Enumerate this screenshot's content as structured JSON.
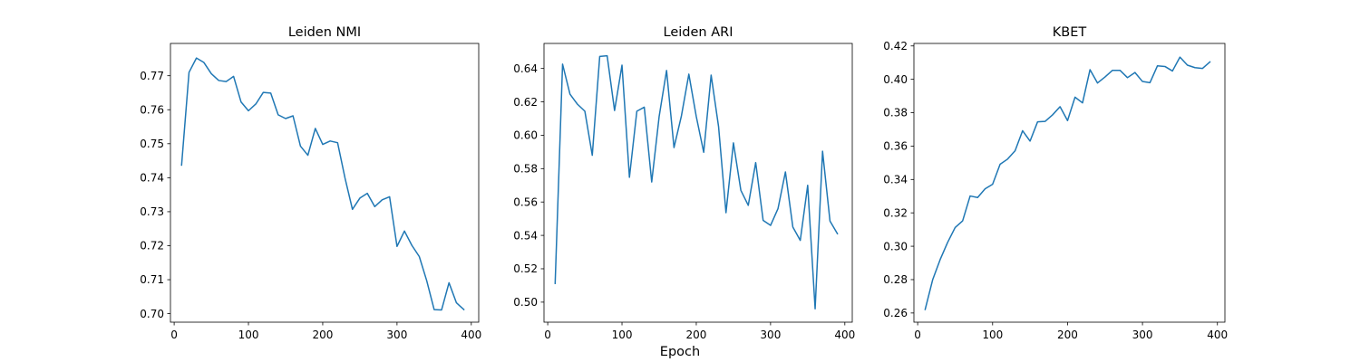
{
  "figure": {
    "xlabel": "Epoch"
  },
  "chart_data": [
    {
      "type": "line",
      "title": "Leiden NMI",
      "xlabel": "",
      "ylabel": "",
      "xlim": [
        -5,
        410
      ],
      "ylim": [
        0.6975,
        0.7795
      ],
      "xticks": [
        0,
        100,
        200,
        300,
        400
      ],
      "yticks": [
        0.7,
        0.71,
        0.72,
        0.73,
        0.74,
        0.75,
        0.76,
        0.77
      ],
      "ytick_decimals": 2,
      "grid": false,
      "line_color": "#1f77b4",
      "x": [
        10,
        20,
        30,
        40,
        50,
        60,
        70,
        80,
        90,
        100,
        110,
        120,
        130,
        140,
        150,
        160,
        170,
        180,
        190,
        200,
        210,
        220,
        230,
        240,
        250,
        260,
        270,
        280,
        290,
        300,
        310,
        320,
        330,
        340,
        350,
        360,
        370,
        380,
        390
      ],
      "values": [
        0.7437,
        0.771,
        0.7752,
        0.7739,
        0.7706,
        0.7686,
        0.7683,
        0.7698,
        0.7623,
        0.7597,
        0.7617,
        0.7651,
        0.7649,
        0.7585,
        0.7574,
        0.7582,
        0.7493,
        0.7466,
        0.7545,
        0.7498,
        0.7508,
        0.7503,
        0.7399,
        0.7307,
        0.734,
        0.7354,
        0.7315,
        0.7335,
        0.7344,
        0.7198,
        0.7243,
        0.7201,
        0.7168,
        0.7097,
        0.7012,
        0.7011,
        0.7091,
        0.7032,
        0.7012
      ]
    },
    {
      "type": "line",
      "title": "Leiden ARI",
      "xlabel": "",
      "ylabel": "",
      "xlim": [
        -5,
        410
      ],
      "ylim": [
        0.488,
        0.655
      ],
      "xticks": [
        0,
        100,
        200,
        300,
        400
      ],
      "yticks": [
        0.5,
        0.52,
        0.54,
        0.56,
        0.58,
        0.6,
        0.62,
        0.64
      ],
      "ytick_decimals": 2,
      "grid": false,
      "line_color": "#1f77b4",
      "x": [
        10,
        20,
        30,
        40,
        50,
        60,
        70,
        80,
        90,
        100,
        110,
        120,
        130,
        140,
        150,
        160,
        170,
        180,
        190,
        200,
        210,
        220,
        230,
        240,
        250,
        260,
        270,
        280,
        290,
        300,
        310,
        320,
        330,
        340,
        350,
        360,
        370,
        380,
        390
      ],
      "values": [
        0.5112,
        0.6426,
        0.6246,
        0.6186,
        0.6144,
        0.588,
        0.6472,
        0.6476,
        0.6148,
        0.642,
        0.5748,
        0.6144,
        0.6168,
        0.572,
        0.6112,
        0.6388,
        0.5926,
        0.6116,
        0.6366,
        0.6112,
        0.5898,
        0.636,
        0.6052,
        0.5536,
        0.5954,
        0.567,
        0.558,
        0.5836,
        0.549,
        0.546,
        0.556,
        0.578,
        0.545,
        0.537,
        0.57,
        0.496,
        0.5904,
        0.5486,
        0.541
      ]
    },
    {
      "type": "line",
      "title": "KBET",
      "xlabel": "",
      "ylabel": "",
      "xlim": [
        -5,
        410
      ],
      "ylim": [
        0.2545,
        0.4215
      ],
      "xticks": [
        0,
        100,
        200,
        300,
        400
      ],
      "yticks": [
        0.26,
        0.28,
        0.3,
        0.32,
        0.34,
        0.36,
        0.38,
        0.4,
        0.42
      ],
      "ytick_decimals": 2,
      "grid": false,
      "line_color": "#1f77b4",
      "x": [
        10,
        20,
        30,
        40,
        50,
        60,
        70,
        80,
        90,
        100,
        110,
        120,
        130,
        140,
        150,
        160,
        170,
        180,
        190,
        200,
        210,
        220,
        230,
        240,
        250,
        260,
        270,
        280,
        290,
        300,
        310,
        320,
        330,
        340,
        350,
        360,
        370,
        380,
        390
      ],
      "values": [
        0.2621,
        0.2799,
        0.292,
        0.3023,
        0.3112,
        0.3152,
        0.3301,
        0.3292,
        0.3344,
        0.3371,
        0.3491,
        0.3522,
        0.3572,
        0.3692,
        0.363,
        0.3745,
        0.3748,
        0.3787,
        0.3836,
        0.3753,
        0.3893,
        0.3859,
        0.4058,
        0.3978,
        0.4014,
        0.4054,
        0.4054,
        0.401,
        0.4041,
        0.3987,
        0.398,
        0.4081,
        0.4077,
        0.405,
        0.4133,
        0.4085,
        0.407,
        0.4065,
        0.4104
      ]
    }
  ]
}
